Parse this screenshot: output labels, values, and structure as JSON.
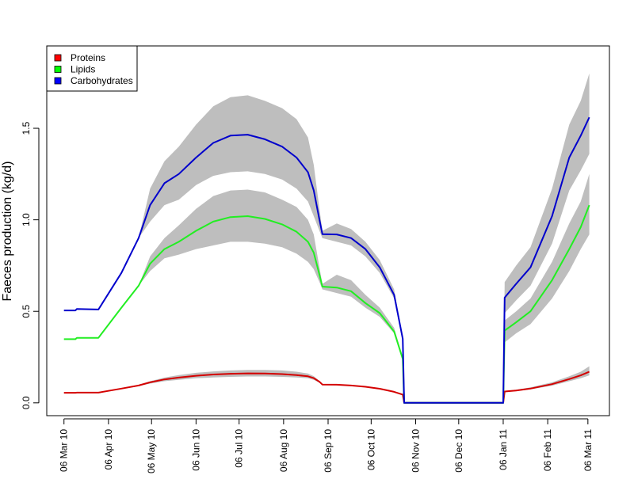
{
  "chart_data": {
    "type": "line",
    "title": "",
    "xlabel": "",
    "ylabel": "Faeces production (kg/d)",
    "grid": false,
    "legend_position": "top-left",
    "x_tick_labels": [
      "06 Mar 10",
      "06 Apr 10",
      "06 May 10",
      "06 Jun 10",
      "06 Jul 10",
      "06 Aug 10",
      "06 Sep 10",
      "06 Oct 10",
      "06 Nov 10",
      "06 Dec 10",
      "06 Jan 11",
      "06 Feb 11",
      "06 Mar 11"
    ],
    "x_tick_days": [
      0,
      31,
      61,
      92,
      122,
      153,
      184,
      214,
      245,
      275,
      306,
      337,
      365
    ],
    "x_range_days": [
      -12,
      380
    ],
    "y_ticks": [
      "0.0",
      "0.5",
      "1.0",
      "1.5"
    ],
    "y_tick_values": [
      0,
      0.5,
      1.0,
      1.5
    ],
    "ylim": [
      -0.07,
      1.95
    ],
    "band_color": "#bebebe",
    "series": [
      {
        "name": "Proteins",
        "color": "#d40000",
        "legend_fill": "#ff0000",
        "x_days": [
          0,
          8,
          9,
          24,
          40,
          52,
          60,
          70,
          80,
          92,
          104,
          116,
          128,
          140,
          152,
          162,
          170,
          174,
          178,
          180,
          190,
          200,
          210,
          220,
          230,
          236,
          237,
          306,
          307,
          315,
          325,
          340,
          352,
          360,
          366
        ],
        "values": [
          0.055,
          0.055,
          0.056,
          0.056,
          0.078,
          0.095,
          0.112,
          0.128,
          0.138,
          0.148,
          0.155,
          0.159,
          0.161,
          0.16,
          0.157,
          0.152,
          0.145,
          0.135,
          0.115,
          0.1,
          0.099,
          0.095,
          0.088,
          0.077,
          0.06,
          0.045,
          0.0,
          0.0,
          0.062,
          0.067,
          0.078,
          0.102,
          0.13,
          0.15,
          0.17
        ],
        "band_low": [
          0.055,
          0.055,
          0.056,
          0.056,
          0.078,
          0.092,
          0.105,
          0.118,
          0.126,
          0.134,
          0.139,
          0.142,
          0.144,
          0.144,
          0.142,
          0.139,
          0.134,
          0.126,
          0.11,
          0.098,
          0.097,
          0.093,
          0.086,
          0.075,
          0.059,
          0.044,
          0.0,
          0.0,
          0.06,
          0.064,
          0.074,
          0.094,
          0.118,
          0.134,
          0.15
        ],
        "band_high": [
          0.055,
          0.055,
          0.056,
          0.056,
          0.078,
          0.098,
          0.118,
          0.138,
          0.152,
          0.164,
          0.172,
          0.177,
          0.18,
          0.18,
          0.177,
          0.17,
          0.16,
          0.146,
          0.12,
          0.102,
          0.101,
          0.097,
          0.09,
          0.079,
          0.062,
          0.046,
          0.0,
          0.0,
          0.066,
          0.072,
          0.085,
          0.112,
          0.145,
          0.17,
          0.2
        ]
      },
      {
        "name": "Lipids",
        "color": "#22ee22",
        "legend_fill": "#00ff00",
        "x_days": [
          0,
          8,
          9,
          24,
          40,
          52,
          60,
          70,
          80,
          92,
          104,
          116,
          128,
          140,
          152,
          162,
          170,
          174,
          178,
          180,
          190,
          200,
          210,
          220,
          230,
          236,
          237,
          306,
          307,
          315,
          325,
          340,
          352,
          360,
          366
        ],
        "values": [
          0.348,
          0.348,
          0.355,
          0.355,
          0.52,
          0.64,
          0.76,
          0.84,
          0.88,
          0.94,
          0.99,
          1.015,
          1.02,
          1.005,
          0.975,
          0.935,
          0.88,
          0.82,
          0.7,
          0.635,
          0.63,
          0.61,
          0.545,
          0.49,
          0.39,
          0.24,
          0.0,
          0.0,
          0.395,
          0.44,
          0.5,
          0.67,
          0.84,
          0.96,
          1.08
        ],
        "band_low": [
          0.348,
          0.348,
          0.355,
          0.355,
          0.52,
          0.64,
          0.72,
          0.79,
          0.81,
          0.84,
          0.86,
          0.88,
          0.88,
          0.87,
          0.85,
          0.815,
          0.77,
          0.73,
          0.66,
          0.62,
          0.6,
          0.58,
          0.52,
          0.47,
          0.38,
          0.23,
          0.0,
          0.0,
          0.33,
          0.38,
          0.43,
          0.57,
          0.72,
          0.84,
          0.92
        ],
        "band_high": [
          0.348,
          0.348,
          0.355,
          0.355,
          0.52,
          0.64,
          0.8,
          0.9,
          0.97,
          1.06,
          1.13,
          1.16,
          1.165,
          1.15,
          1.11,
          1.07,
          1.0,
          0.92,
          0.74,
          0.65,
          0.7,
          0.67,
          0.59,
          0.52,
          0.41,
          0.25,
          0.0,
          0.0,
          0.45,
          0.5,
          0.57,
          0.77,
          0.98,
          1.1,
          1.25
        ]
      },
      {
        "name": "Carbohydrates",
        "color": "#0000cc",
        "legend_fill": "#0000ff",
        "x_days": [
          0,
          8,
          9,
          24,
          40,
          52,
          60,
          70,
          80,
          92,
          104,
          116,
          128,
          140,
          152,
          162,
          170,
          174,
          178,
          180,
          190,
          200,
          210,
          220,
          230,
          236,
          237,
          306,
          307,
          315,
          325,
          340,
          352,
          360,
          366
        ],
        "values": [
          0.505,
          0.505,
          0.513,
          0.51,
          0.71,
          0.9,
          1.08,
          1.2,
          1.25,
          1.34,
          1.42,
          1.46,
          1.465,
          1.44,
          1.4,
          1.34,
          1.26,
          1.16,
          1.0,
          0.922,
          0.92,
          0.9,
          0.84,
          0.74,
          0.59,
          0.35,
          0.0,
          0.0,
          0.575,
          0.65,
          0.74,
          1.02,
          1.34,
          1.46,
          1.56
        ],
        "band_low": [
          0.505,
          0.505,
          0.513,
          0.51,
          0.71,
          0.9,
          0.99,
          1.08,
          1.11,
          1.19,
          1.24,
          1.26,
          1.265,
          1.25,
          1.22,
          1.17,
          1.1,
          1.02,
          0.94,
          0.9,
          0.88,
          0.86,
          0.8,
          0.71,
          0.57,
          0.34,
          0.0,
          0.0,
          0.49,
          0.56,
          0.64,
          0.87,
          1.16,
          1.27,
          1.36
        ],
        "band_high": [
          0.505,
          0.505,
          0.513,
          0.51,
          0.71,
          0.9,
          1.17,
          1.32,
          1.4,
          1.52,
          1.62,
          1.67,
          1.68,
          1.65,
          1.61,
          1.55,
          1.45,
          1.3,
          1.06,
          0.94,
          0.98,
          0.95,
          0.88,
          0.78,
          0.62,
          0.36,
          0.0,
          0.0,
          0.66,
          0.75,
          0.85,
          1.17,
          1.52,
          1.65,
          1.8
        ]
      }
    ]
  }
}
